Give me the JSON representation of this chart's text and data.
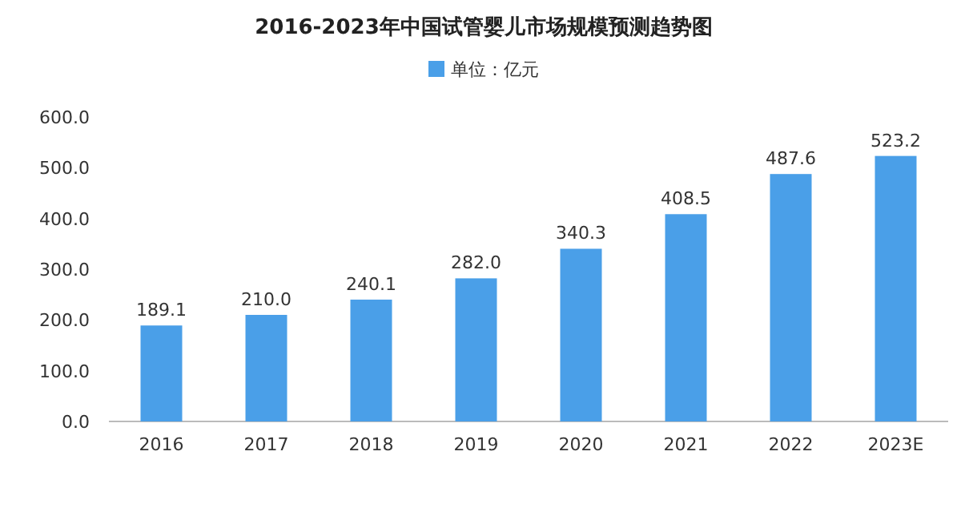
{
  "chart_data": {
    "type": "bar",
    "title": "2016-2023年中国试管婴儿市场规模预测趋势图",
    "categories": [
      "2016",
      "2017",
      "2018",
      "2019",
      "2020",
      "2021",
      "2022",
      "2023E"
    ],
    "series": [
      {
        "name": "单位：亿元",
        "color": "#4a9fe8",
        "values": [
          189.1,
          210.0,
          240.1,
          282.0,
          340.3,
          408.5,
          487.6,
          523.2
        ],
        "value_labels": [
          "189.1",
          "210.0",
          "240.1",
          "282.0",
          "340.3",
          "408.5",
          "487.6",
          "523.2"
        ]
      }
    ],
    "ylim": [
      0,
      600
    ],
    "yticks": [
      {
        "value": 0,
        "label": "0.0"
      },
      {
        "value": 100,
        "label": "100.0"
      },
      {
        "value": 200,
        "label": "200.0"
      },
      {
        "value": 300,
        "label": "300.0"
      },
      {
        "value": 400,
        "label": "400.0"
      },
      {
        "value": 500,
        "label": "500.0"
      },
      {
        "value": 600,
        "label": "600.0"
      }
    ],
    "legend": "top",
    "grid": false
  }
}
